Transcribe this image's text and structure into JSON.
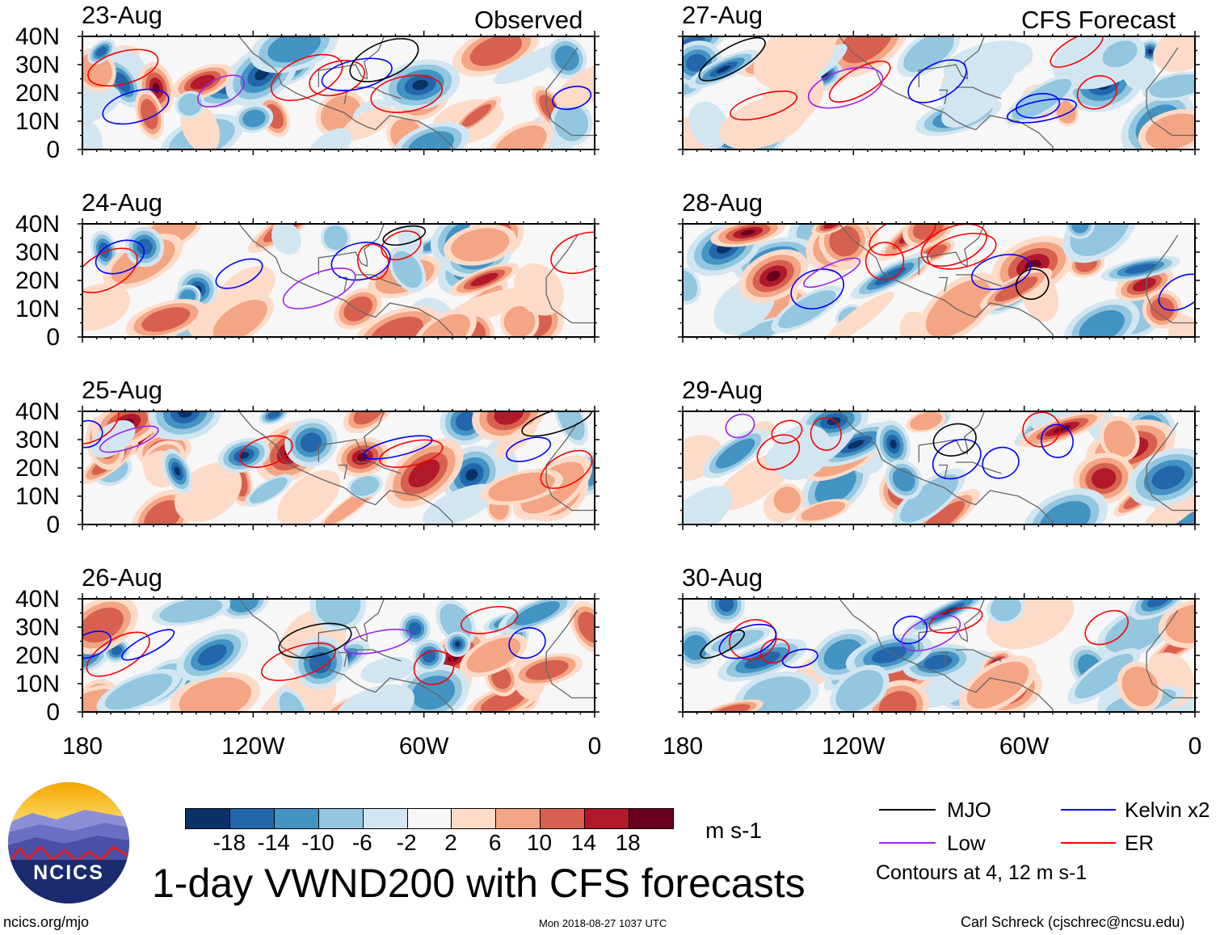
{
  "headers": {
    "left": "Observed",
    "right": "CFS Forecast"
  },
  "panels": [
    {
      "date": "23-Aug",
      "column": "observed"
    },
    {
      "date": "24-Aug",
      "column": "observed"
    },
    {
      "date": "25-Aug",
      "column": "observed"
    },
    {
      "date": "26-Aug",
      "column": "observed"
    },
    {
      "date": "27-Aug",
      "column": "forecast"
    },
    {
      "date": "28-Aug",
      "column": "forecast"
    },
    {
      "date": "29-Aug",
      "column": "forecast"
    },
    {
      "date": "30-Aug",
      "column": "forecast"
    }
  ],
  "lat_ticks": [
    "40N",
    "30N",
    "20N",
    "10N",
    "0"
  ],
  "lon_ticks": [
    "180",
    "120W",
    "60W",
    "0"
  ],
  "colorbar": {
    "labels": [
      "-18",
      "-14",
      "-10",
      "-6",
      "-2",
      "2",
      "6",
      "10",
      "14",
      "18"
    ],
    "colors": [
      "#0a3266",
      "#2266ac",
      "#4393c3",
      "#93c6df",
      "#d2e6f1",
      "#f7f7f7",
      "#fedbc8",
      "#f4a583",
      "#d7614e",
      "#b2182c",
      "#67001f"
    ],
    "units": "m s-1"
  },
  "legend": {
    "items": [
      {
        "label": "MJO",
        "color": "#000000"
      },
      {
        "label": "Kelvin x2",
        "color": "#0000ff"
      },
      {
        "label": "Low",
        "color": "#a020f0"
      },
      {
        "label": "ER",
        "color": "#ff0000"
      }
    ],
    "note": "Contours at 4, 12 m s-1"
  },
  "title": "1-day VWND200 with CFS forecasts",
  "logo_text": "NCICS",
  "footer": {
    "left": "ncics.org/mjo",
    "center": "Mon 2018-08-27 1037 UTC",
    "right": "Carl Schreck (cjschrec@ncsu.edu)"
  }
}
